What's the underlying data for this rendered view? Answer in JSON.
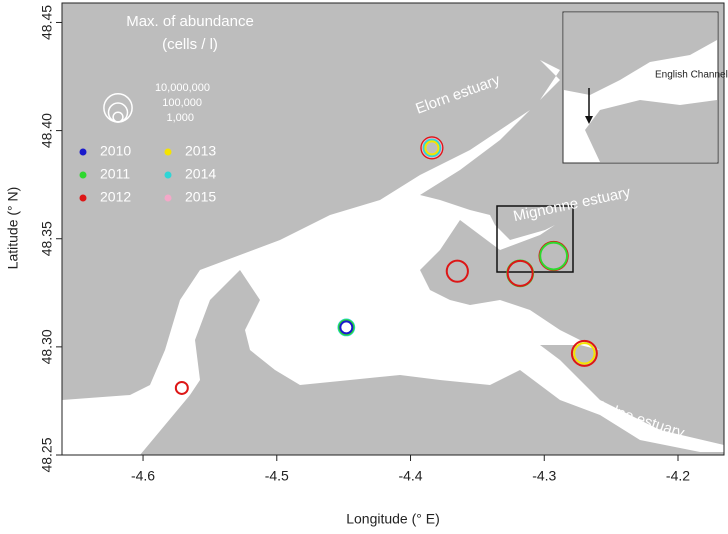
{
  "chart_data": {
    "type": "bubble_map",
    "x_label": "Longitude (° E)",
    "y_label": "Latitude (° N)",
    "xlim": [
      -4.6606,
      -4.1656
    ],
    "ylim": [
      48.25,
      48.459
    ],
    "xticks": [
      -4.6,
      -4.5,
      -4.4,
      -4.3,
      -4.2
    ],
    "yticks": [
      48.25,
      {
        "value": 48.3,
        "label": "48.30"
      },
      48.35,
      {
        "value": 48.4,
        "label": "48.40"
      },
      48.45
    ],
    "size_legend": {
      "title": "Max. of abundance",
      "subtitle": "(cells / l)",
      "sizes": [
        {
          "value": 10000000,
          "label": "10,000,000"
        },
        {
          "value": 100000,
          "label": "100,000"
        },
        {
          "value": 1000,
          "label": "1,000"
        }
      ]
    },
    "annotations": [
      "Elorn estuary",
      "Mignonne estuary",
      "Aulne estuary",
      "English Channel"
    ],
    "series": [
      {
        "name": "2010",
        "color": "#1a1acc",
        "x": [
          -4.448
        ],
        "y": [
          48.309
        ],
        "sizes": [
          3000
        ]
      },
      {
        "name": "2011",
        "color": "#2ed82e",
        "x": [
          -4.318,
          -4.293,
          -4.448
        ],
        "y": [
          48.334,
          48.342,
          48.309
        ],
        "sizes": [
          3000000,
          5000000,
          10000
        ]
      },
      {
        "name": "2012",
        "color": "#dd1616",
        "x": [
          -4.384,
          -4.365,
          -4.318,
          -4.293,
          -4.27,
          -4.571
        ],
        "y": [
          48.392,
          48.335,
          48.334,
          48.342,
          48.297,
          48.281
        ],
        "sizes": [
          300000,
          300000,
          2000000,
          10000000,
          2000000,
          3000
        ]
      },
      {
        "name": "2013",
        "color": "#f5e400",
        "x": [
          -4.384,
          -4.27
        ],
        "y": [
          48.392,
          48.297
        ],
        "sizes": [
          5000,
          200000
        ]
      },
      {
        "name": "2014",
        "color": "#2fd6d6",
        "x": [
          -4.384,
          -4.448
        ],
        "y": [
          48.392,
          48.309
        ],
        "sizes": [
          30000,
          20000
        ]
      },
      {
        "name": "2015",
        "color": "#f4a8c8",
        "x": [
          -4.384
        ],
        "y": [
          48.392
        ],
        "sizes": [
          80000
        ]
      }
    ]
  }
}
